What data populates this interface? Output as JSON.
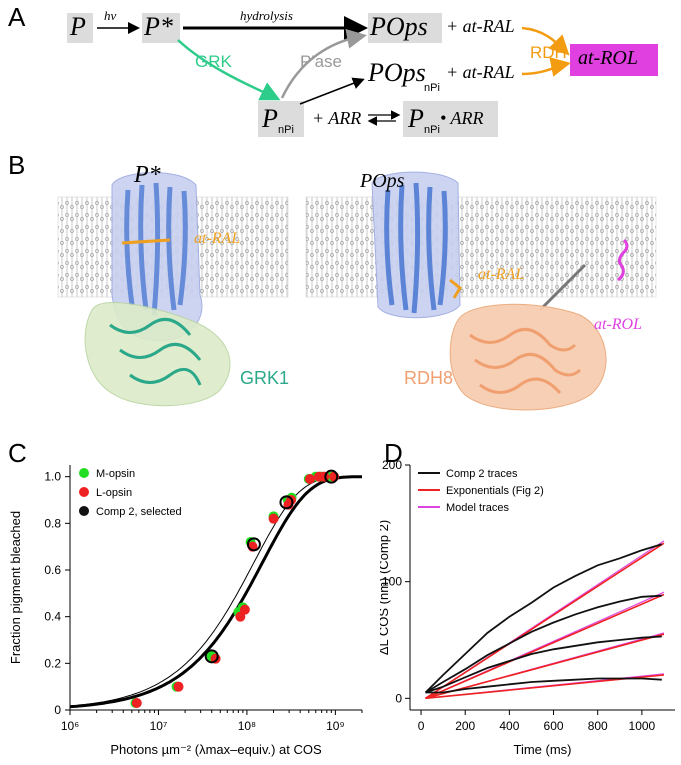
{
  "panels": {
    "A": "A",
    "B": "B",
    "C": "C",
    "D": "D"
  },
  "scheme": {
    "P": "P",
    "hv": "hν",
    "Pstar": "P*",
    "hydrolysis": "hydrolysis",
    "POps": "POps",
    "plus_atRAL_1": "+ at-RAL",
    "RDH": "RDH",
    "atROL_box": "at-ROL",
    "GRK": "GRK",
    "Pase": "P'ase",
    "POps_nPi": "POps",
    "nPi_sub": "nPi",
    "plus_atRAL_2": "+ at-RAL",
    "P_nPi": "P",
    "plus_ARR": "+ ARR",
    "P_nPi_ARR": "P",
    "ARR": "• ARR",
    "colors": {
      "grk": "#2ecc8a",
      "rdh": "#f39c12",
      "pase": "#999999",
      "atrol_box": "#e040e0",
      "box_grey": "#dcdcdc"
    }
  },
  "structures": {
    "left_title": "P*",
    "right_title": "POps",
    "atRAL_left": "at-RAL",
    "GRK1": "GRK1",
    "atRAL_right": "at-RAL",
    "RDH8": "RDH8",
    "atROL": "at-ROL",
    "colors": {
      "protein": "#5b84d6",
      "grk1": "#2aa889",
      "rdh8": "#f0a070",
      "retinal": "#f0a020",
      "rol": "#e040e0"
    }
  },
  "chart_data": [
    {
      "type": "scatter",
      "panel": "C",
      "ylabel": "Fraction pigment bleached",
      "xlabel": "Photons µm⁻² (λmax–equiv.) at COS",
      "xscale": "log",
      "xlim": [
        1000000,
        2000000000
      ],
      "ylim": [
        0,
        1.05
      ],
      "x_tick_labels": [
        "10⁶",
        "10⁷",
        "10⁸",
        "10⁹"
      ],
      "y_tick_labels": [
        "0",
        "0.2",
        "0.4",
        "0.6",
        "0.8",
        "1.0"
      ],
      "legend": [
        "M-opsin",
        "L-opsin",
        "Comp 2, selected"
      ],
      "legend_position": "top-left",
      "series": [
        {
          "name": "M-opsin",
          "color": "#22dd22",
          "x": [
            5500000,
            16000000,
            40000000,
            80000000,
            90000000,
            110000000,
            200000000,
            290000000,
            320000000,
            500000000,
            600000000,
            700000000,
            900000000
          ],
          "y": [
            0.03,
            0.1,
            0.23,
            0.42,
            0.44,
            0.72,
            0.83,
            0.9,
            0.91,
            0.99,
            1.0,
            1.0,
            1.0
          ]
        },
        {
          "name": "L-opsin",
          "color": "#ee2222",
          "x": [
            5400000,
            16000000,
            42000000,
            80000000,
            90000000,
            110000000,
            190000000,
            280000000,
            300000000,
            490000000,
            620000000,
            710000000,
            920000000
          ],
          "y": [
            0.03,
            0.1,
            0.22,
            0.4,
            0.43,
            0.7,
            0.82,
            0.88,
            0.9,
            0.99,
            1.0,
            1.0,
            1.0
          ]
        },
        {
          "name": "Comp 2, selected",
          "color": "#111111",
          "x": [
            40000000,
            120000000,
            280000000,
            900000000
          ],
          "y": [
            0.23,
            0.71,
            0.89,
            1.0
          ]
        }
      ]
    },
    {
      "type": "line",
      "panel": "D",
      "ylabel": "ΔL COS (nm) (Comp 2)",
      "xlabel": "Time (ms)",
      "xlim": [
        -50,
        1150
      ],
      "ylim": [
        -10,
        200
      ],
      "x_tick_labels": [
        "0",
        "200",
        "400",
        "600",
        "800",
        "1000"
      ],
      "y_tick_labels": [
        "0",
        "100",
        "200"
      ],
      "legend": [
        "Comp 2 traces",
        "Exponentials (Fig 2)",
        "Model traces"
      ],
      "legend_position": "top-left",
      "series": [
        {
          "name": "Comp 2 traces",
          "color": "#111111",
          "x": [
            20,
            100,
            200,
            300,
            400,
            500,
            600,
            700,
            800,
            900,
            1000,
            1090
          ],
          "y": [
            [
              5,
              20,
              38,
              56,
              70,
              82,
              95,
              105,
              114,
              120,
              127,
              132
            ],
            [
              5,
              14,
              25,
              37,
              47,
              57,
              65,
              72,
              78,
              83,
              87,
              88
            ],
            [
              5,
              10,
              18,
              26,
              32,
              38,
              42,
              45,
              48,
              50,
              52,
              53
            ],
            [
              5,
              5,
              8,
              10,
              12,
              14,
              15,
              16,
              17,
              17,
              17,
              16
            ]
          ]
        },
        {
          "name": "Exponentials (Fig 2)",
          "color": "#ee2222",
          "x": [
            20,
            1100
          ],
          "y": [
            [
              0,
              133
            ],
            [
              0,
              89
            ],
            [
              0,
              55
            ],
            [
              0,
              20
            ]
          ]
        },
        {
          "name": "Model traces",
          "color": "#dd44dd",
          "x": [
            20,
            1100
          ],
          "y": [
            [
              0,
              135
            ],
            [
              0,
              91
            ],
            [
              0,
              56
            ],
            [
              0,
              21
            ]
          ]
        }
      ]
    }
  ]
}
